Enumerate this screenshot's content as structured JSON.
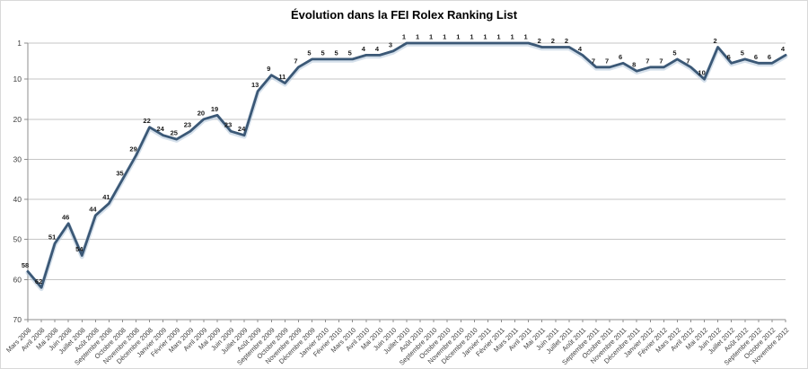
{
  "chart_data": {
    "type": "line",
    "title": "Évolution dans la FEI Rolex Ranking List",
    "x": [
      "Mars 2008",
      "Avril 2008",
      "Mai 2008",
      "Juin 2008",
      "Juillet 2008",
      "Août 2008",
      "Septembre 2008",
      "Octobre 2008",
      "Novembre 2008",
      "Décembre 2008",
      "Janvier 2009",
      "Février 2009",
      "Mars 2009",
      "Avril 2009",
      "Mai 2009",
      "Juin 2009",
      "Juillet 2009",
      "Août 2009",
      "Septembre 2009",
      "Octobre 2009",
      "Novembre 2009",
      "Décembre 2009",
      "Janvier 2010",
      "Février 2010",
      "Mars 2010",
      "Avril 2010",
      "Mai 2010",
      "Juin 2010",
      "Juillet 2010",
      "Août 2010",
      "Septembre 2010",
      "Octobre 2010",
      "Novembre 2010",
      "Décembre 2010",
      "Janvier 2011",
      "Février 2011",
      "Mars 2011",
      "Avril 2011",
      "Mai 2011",
      "Juin 2011",
      "Juillet 2011",
      "Août 2011",
      "Septembre 2011",
      "Octobre 2011",
      "Novembre 2011",
      "Décembre 2011",
      "Janvier 2012",
      "Février 2012",
      "Mars 2012",
      "Avril 2012",
      "Mai 2012",
      "Juin 2012",
      "Juillet 2012",
      "Août 2012",
      "Septembre 2012",
      "Octobre 2012",
      "Novembre 2012"
    ],
    "values": [
      58,
      62,
      51,
      46,
      54,
      44,
      41,
      35,
      29,
      22,
      24,
      25,
      23,
      20,
      19,
      23,
      24,
      13,
      9,
      11,
      7,
      5,
      5,
      5,
      5,
      4,
      4,
      3,
      1,
      1,
      1,
      1,
      1,
      1,
      1,
      1,
      1,
      1,
      2,
      2,
      2,
      4,
      7,
      7,
      6,
      8,
      7,
      7,
      5,
      7,
      10,
      2,
      6,
      5,
      6,
      6,
      4
    ],
    "data_labels": true,
    "y_axis": {
      "inverted": true,
      "min": 1,
      "max": 70,
      "ticks": [
        1,
        10,
        20,
        30,
        40,
        50,
        60,
        70
      ]
    },
    "x_label_rotation": 45,
    "grid": true,
    "legend_position": "none",
    "colors": {
      "line": "#3b5876",
      "line_halo": "#b3c6da",
      "grid": "#c6c6c6",
      "axis": "#8e8e8e",
      "title_text": "#000000",
      "axis_text": "#3f3f3f",
      "data_label_text": "#1a1a1a",
      "background": "#ffffff"
    }
  }
}
